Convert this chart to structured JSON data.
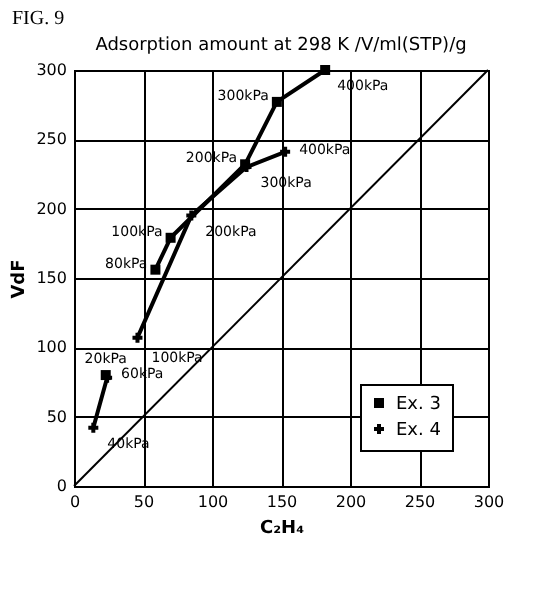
{
  "chart_data": {
    "type": "line",
    "title": "Adsorption amount at 298 K /V/ml(STP)/g",
    "xlabel": "C₂H₄",
    "ylabel": "VdF",
    "xlim": [
      0,
      300
    ],
    "ylim": [
      0,
      300
    ],
    "xticks": [
      0,
      50,
      100,
      150,
      200,
      250,
      300
    ],
    "yticks": [
      0,
      50,
      100,
      150,
      200,
      250,
      300
    ],
    "grid": true,
    "legend": "bottom right",
    "series": [
      {
        "name": "Ex. 3",
        "color": "#000000",
        "marker": "square",
        "x": [
          23,
          null,
          59,
          70,
          124,
          147,
          182
        ],
        "values": [
          80,
          null,
          156,
          179,
          232,
          277,
          300
        ]
      },
      {
        "name": "Ex. 4",
        "color": "#000000",
        "marker": "cross",
        "x": [
          14,
          24,
          null,
          46,
          85,
          125,
          153
        ],
        "values": [
          42,
          78,
          null,
          107,
          195,
          230,
          241
        ]
      },
      {
        "color": "#000000",
        "marker": "none",
        "x": [
          0,
          300
        ],
        "values": [
          0,
          300
        ]
      }
    ],
    "annotations": [
      "FIG. 9",
      {
        "text": "20kPa",
        "x": 23,
        "y": 80
      },
      {
        "text": "80kPa",
        "x": 59,
        "y": 156
      },
      {
        "text": "100kPa",
        "x": 70,
        "y": 179
      },
      {
        "text": "200kPa",
        "x": 124,
        "y": 232
      },
      {
        "text": "300kPa",
        "x": 147,
        "y": 277
      },
      {
        "text": "400kPa",
        "x": 182,
        "y": 300
      },
      {
        "text": "40kPa",
        "x": 14,
        "y": 42
      },
      {
        "text": "60kPa",
        "x": 24,
        "y": 78
      },
      {
        "text": "100kPa",
        "x": 46,
        "y": 107
      },
      {
        "text": "200kPa",
        "x": 85,
        "y": 195
      },
      {
        "text": "300kPa",
        "x": 125,
        "y": 230
      },
      {
        "text": "400kPa",
        "x": 153,
        "y": 241
      }
    ]
  }
}
